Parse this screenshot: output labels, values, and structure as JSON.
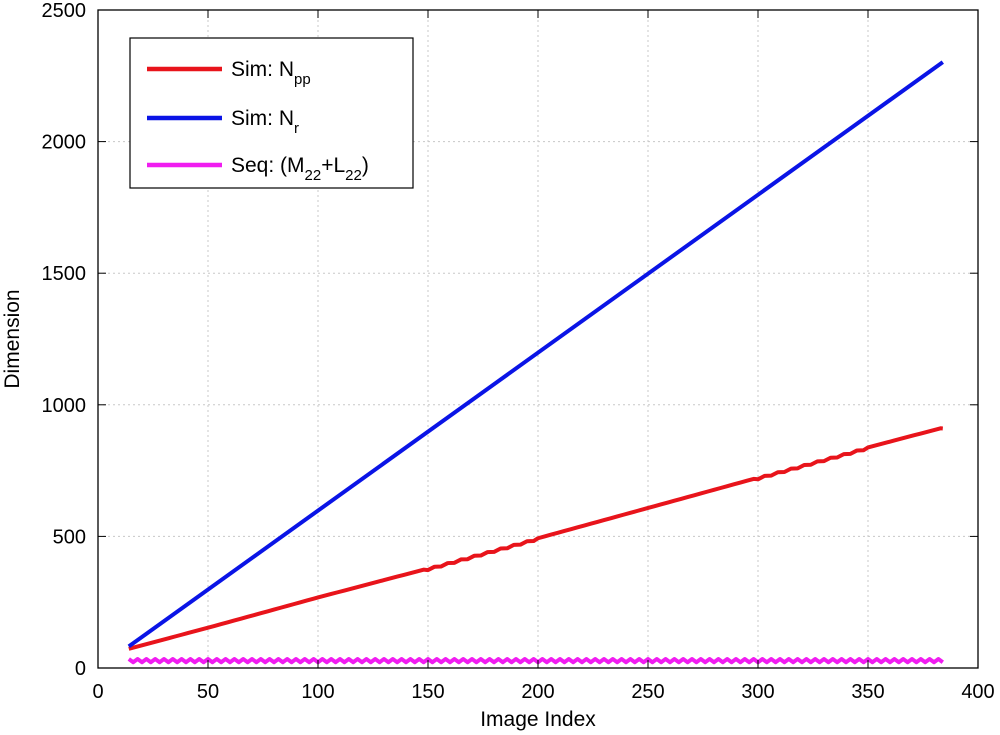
{
  "chart_data": {
    "type": "line",
    "title": "",
    "xlabel": "Image Index",
    "ylabel": "Dimension",
    "xlim": [
      0,
      400
    ],
    "ylim": [
      0,
      2500
    ],
    "xticks": [
      0,
      50,
      100,
      150,
      200,
      250,
      300,
      350,
      400
    ],
    "yticks": [
      0,
      500,
      1000,
      1500,
      2000,
      2500
    ],
    "grid": true,
    "legend_position": "top-left",
    "series": [
      {
        "name": "Sim: Npp",
        "legend_parts": [
          [
            "Sim: N",
            "normal"
          ],
          [
            "pp",
            "sub"
          ]
        ],
        "color": "#e8141b",
        "x": [
          14,
          50,
          100,
          150,
          200,
          250,
          300,
          350,
          384
        ],
        "y": [
          70,
          150,
          265,
          375,
          490,
          605,
          720,
          835,
          910
        ]
      },
      {
        "name": "Sim: Nr",
        "legend_parts": [
          [
            "Sim: N",
            "normal"
          ],
          [
            "r",
            "sub"
          ]
        ],
        "color": "#0a14e6",
        "x": [
          14,
          384
        ],
        "y": [
          82,
          2302
        ]
      },
      {
        "name": "Seq: (M22+L22)",
        "legend_parts": [
          [
            "Seq: (M",
            "normal"
          ],
          [
            "22",
            "sub"
          ],
          [
            "+L",
            "normal"
          ],
          [
            "22",
            "sub"
          ],
          [
            ")",
            "normal"
          ]
        ],
        "color": "#f01df0",
        "x": [
          14,
          384
        ],
        "y": [
          28,
          28
        ]
      }
    ]
  }
}
